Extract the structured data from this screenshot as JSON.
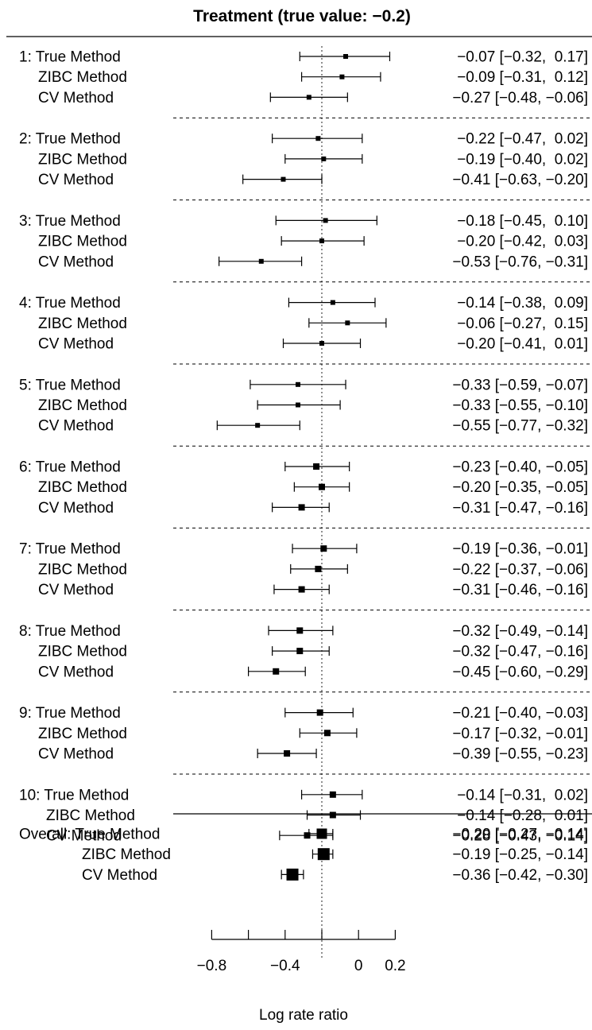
{
  "chart_data": {
    "type": "forest",
    "title": "Treatment (true value: −0.2)",
    "xlabel": "Log rate ratio",
    "reference_line": -0.2,
    "xlim": [
      -0.8,
      0.2
    ],
    "xticks": [
      -0.8,
      -0.4,
      0,
      0.2
    ],
    "xtick_labels": [
      "−0.8",
      "−0.4",
      "0",
      "0.2"
    ],
    "groups": [
      {
        "prefix": "1: ",
        "rows": [
          {
            "label": "True Method",
            "est": -0.07,
            "lo": -0.32,
            "hi": 0.17,
            "text": "−0.07 [−0.32,  0.17]"
          },
          {
            "label": "ZIBC Method",
            "est": -0.09,
            "lo": -0.31,
            "hi": 0.12,
            "text": "−0.09 [−0.31,  0.12]"
          },
          {
            "label": "CV Method",
            "est": -0.27,
            "lo": -0.48,
            "hi": -0.06,
            "text": "−0.27 [−0.48, −0.06]"
          }
        ]
      },
      {
        "prefix": "2: ",
        "rows": [
          {
            "label": "True Method",
            "est": -0.22,
            "lo": -0.47,
            "hi": 0.02,
            "text": "−0.22 [−0.47,  0.02]"
          },
          {
            "label": "ZIBC Method",
            "est": -0.19,
            "lo": -0.4,
            "hi": 0.02,
            "text": "−0.19 [−0.40,  0.02]"
          },
          {
            "label": "CV Method",
            "est": -0.41,
            "lo": -0.63,
            "hi": -0.2,
            "text": "−0.41 [−0.63, −0.20]"
          }
        ]
      },
      {
        "prefix": "3: ",
        "rows": [
          {
            "label": "True Method",
            "est": -0.18,
            "lo": -0.45,
            "hi": 0.1,
            "text": "−0.18 [−0.45,  0.10]"
          },
          {
            "label": "ZIBC Method",
            "est": -0.2,
            "lo": -0.42,
            "hi": 0.03,
            "text": "−0.20 [−0.42,  0.03]"
          },
          {
            "label": "CV Method",
            "est": -0.53,
            "lo": -0.76,
            "hi": -0.31,
            "text": "−0.53 [−0.76, −0.31]"
          }
        ]
      },
      {
        "prefix": "4: ",
        "rows": [
          {
            "label": "True Method",
            "est": -0.14,
            "lo": -0.38,
            "hi": 0.09,
            "text": "−0.14 [−0.38,  0.09]"
          },
          {
            "label": "ZIBC Method",
            "est": -0.06,
            "lo": -0.27,
            "hi": 0.15,
            "text": "−0.06 [−0.27,  0.15]"
          },
          {
            "label": "CV Method",
            "est": -0.2,
            "lo": -0.41,
            "hi": 0.01,
            "text": "−0.20 [−0.41,  0.01]"
          }
        ]
      },
      {
        "prefix": "5: ",
        "rows": [
          {
            "label": "True Method",
            "est": -0.33,
            "lo": -0.59,
            "hi": -0.07,
            "text": "−0.33 [−0.59, −0.07]"
          },
          {
            "label": "ZIBC Method",
            "est": -0.33,
            "lo": -0.55,
            "hi": -0.1,
            "text": "−0.33 [−0.55, −0.10]"
          },
          {
            "label": "CV Method",
            "est": -0.55,
            "lo": -0.77,
            "hi": -0.32,
            "text": "−0.55 [−0.77, −0.32]"
          }
        ]
      },
      {
        "prefix": "6: ",
        "rows": [
          {
            "label": "True Method",
            "est": -0.23,
            "lo": -0.4,
            "hi": -0.05,
            "text": "−0.23 [−0.40, −0.05]"
          },
          {
            "label": "ZIBC Method",
            "est": -0.2,
            "lo": -0.35,
            "hi": -0.05,
            "text": "−0.20 [−0.35, −0.05]"
          },
          {
            "label": "CV Method",
            "est": -0.31,
            "lo": -0.47,
            "hi": -0.16,
            "text": "−0.31 [−0.47, −0.16]"
          }
        ]
      },
      {
        "prefix": "7: ",
        "rows": [
          {
            "label": "True Method",
            "est": -0.19,
            "lo": -0.36,
            "hi": -0.01,
            "text": "−0.19 [−0.36, −0.01]"
          },
          {
            "label": "ZIBC Method",
            "est": -0.22,
            "lo": -0.37,
            "hi": -0.06,
            "text": "−0.22 [−0.37, −0.06]"
          },
          {
            "label": "CV Method",
            "est": -0.31,
            "lo": -0.46,
            "hi": -0.16,
            "text": "−0.31 [−0.46, −0.16]"
          }
        ]
      },
      {
        "prefix": "8: ",
        "rows": [
          {
            "label": "True Method",
            "est": -0.32,
            "lo": -0.49,
            "hi": -0.14,
            "text": "−0.32 [−0.49, −0.14]"
          },
          {
            "label": "ZIBC Method",
            "est": -0.32,
            "lo": -0.47,
            "hi": -0.16,
            "text": "−0.32 [−0.47, −0.16]"
          },
          {
            "label": "CV Method",
            "est": -0.45,
            "lo": -0.6,
            "hi": -0.29,
            "text": "−0.45 [−0.60, −0.29]"
          }
        ]
      },
      {
        "prefix": "9: ",
        "rows": [
          {
            "label": "True Method",
            "est": -0.21,
            "lo": -0.4,
            "hi": -0.03,
            "text": "−0.21 [−0.40, −0.03]"
          },
          {
            "label": "ZIBC Method",
            "est": -0.17,
            "lo": -0.32,
            "hi": -0.01,
            "text": "−0.17 [−0.32, −0.01]"
          },
          {
            "label": "CV Method",
            "est": -0.39,
            "lo": -0.55,
            "hi": -0.23,
            "text": "−0.39 [−0.55, −0.23]"
          }
        ]
      },
      {
        "prefix": "10: ",
        "rows": [
          {
            "label": "True Method",
            "est": -0.14,
            "lo": -0.31,
            "hi": 0.02,
            "text": "−0.14 [−0.31,  0.02]"
          },
          {
            "label": "ZIBC Method",
            "est": -0.14,
            "lo": -0.28,
            "hi": 0.01,
            "text": "−0.14 [−0.28,  0.01]"
          },
          {
            "label": "CV Method",
            "est": -0.28,
            "lo": -0.43,
            "hi": -0.14,
            "text": "−0.28 [−0.43, −0.14]"
          }
        ]
      }
    ],
    "overall": {
      "prefix": "Overall: ",
      "rows": [
        {
          "label": "True Method",
          "est": -0.2,
          "lo": -0.27,
          "hi": -0.14,
          "text": "−0.20 [−0.27, −0.14]"
        },
        {
          "label": "ZIBC Method",
          "est": -0.19,
          "lo": -0.25,
          "hi": -0.14,
          "text": "−0.19 [−0.25, −0.14]"
        },
        {
          "label": "CV Method",
          "est": -0.36,
          "lo": -0.42,
          "hi": -0.3,
          "text": "−0.36 [−0.42, −0.30]"
        }
      ]
    }
  }
}
